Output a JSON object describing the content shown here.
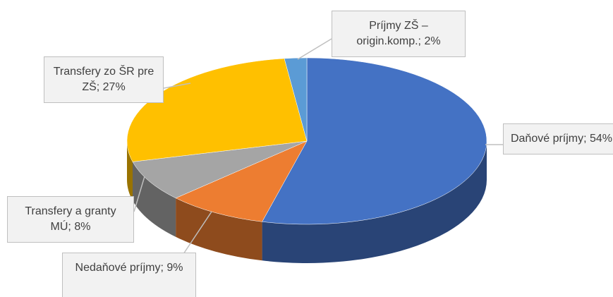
{
  "chart_data": {
    "type": "pie",
    "values": [
      54,
      9,
      8,
      27,
      2
    ],
    "value_labels": [
      "Daňové príjmy; 54%",
      "Nedaňové príjmy; 9%",
      "Transfery a granty MÚ; 8%",
      "Transfery zo ŠR pre ZŠ; 27%",
      "Príjmy ZŠ – origin.komp.; 2%"
    ],
    "colors": [
      "#4472c4",
      "#ed7d31",
      "#a5a5a5",
      "#ffc000",
      "#5b9bd5"
    ]
  }
}
